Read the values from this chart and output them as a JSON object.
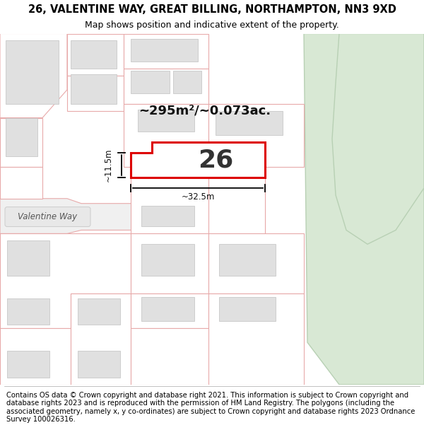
{
  "title_line1": "26, VALENTINE WAY, GREAT BILLING, NORTHAMPTON, NN3 9XD",
  "title_line2": "Map shows position and indicative extent of the property.",
  "footer_text": "Contains OS data © Crown copyright and database right 2021. This information is subject to Crown copyright and database rights 2023 and is reproduced with the permission of HM Land Registry. The polygons (including the associated geometry, namely x, y co-ordinates) are subject to Crown copyright and database rights 2023 Ordnance Survey 100026316.",
  "map_bg": "#f7f7f7",
  "plot_bg": "#ffffff",
  "title_bg": "#ffffff",
  "footer_bg": "#ffffff",
  "plot_outline_color": "#e8aaaa",
  "building_fill": "#e0e0e0",
  "building_stroke": "#c8c8c8",
  "highlight_color": "#dd0000",
  "green_fill": "#d8e8d4",
  "green_stroke": "#b8d0b4",
  "road_fill": "#eeeeee",
  "road_label_fill": "#e8e8e8",
  "text_color": "#000000",
  "area_label": "~295m²/~0.073ac.",
  "number_label": "26",
  "dim_width": "~32.5m",
  "dim_height": "~11.5m",
  "street_label": "Valentine Way",
  "title_fontsize": 10.5,
  "subtitle_fontsize": 9,
  "footer_fontsize": 7.2,
  "area_fontsize": 13,
  "number_fontsize": 26
}
